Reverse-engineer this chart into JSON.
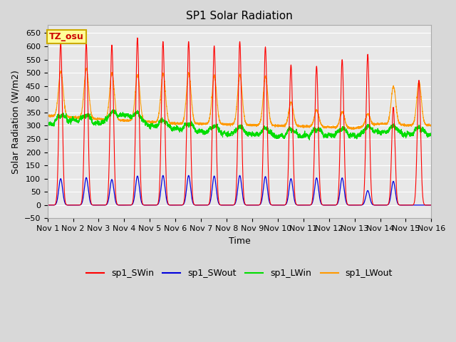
{
  "title": "SP1 Solar Radiation",
  "xlabel": "Time",
  "ylabel": "Solar Radiation (W/m2)",
  "xlim": [
    0,
    15
  ],
  "ylim": [
    -50,
    680
  ],
  "yticks": [
    -50,
    0,
    50,
    100,
    150,
    200,
    250,
    300,
    350,
    400,
    450,
    500,
    550,
    600,
    650
  ],
  "xtick_labels": [
    "Nov 1",
    "Nov 2",
    "Nov 3",
    "Nov 4",
    "Nov 5",
    "Nov 6",
    "Nov 7",
    "Nov 8",
    "Nov 9",
    "Nov 10",
    "Nov 11",
    "Nov 12",
    "Nov 13",
    "Nov 14",
    "Nov 15",
    "Nov 16"
  ],
  "colors": {
    "SWin": "#ff0000",
    "SWout": "#0000dd",
    "LWin": "#00dd00",
    "LWout": "#ff9900"
  },
  "fig_bg_color": "#d8d8d8",
  "plot_bg_color": "#e8e8e8",
  "grid_color": "#ffffff",
  "timezone_label": "TZ_osu",
  "timezone_box_facecolor": "#ffff99",
  "timezone_box_edgecolor": "#ccaa00",
  "timezone_text_color": "#cc0000",
  "legend_labels": [
    "sp1_SWin",
    "sp1_SWout",
    "sp1_LWin",
    "sp1_LWout"
  ],
  "title_fontsize": 11,
  "label_fontsize": 9,
  "tick_fontsize": 8,
  "legend_fontsize": 9,
  "sw_in_peaks": [
    615,
    612,
    605,
    632,
    618,
    618,
    602,
    618,
    598,
    530,
    525,
    550,
    570,
    370,
    472
  ],
  "sw_out_peaks": [
    100,
    104,
    97,
    110,
    112,
    112,
    110,
    112,
    108,
    100,
    103,
    103,
    55,
    90,
    0
  ],
  "lw_in_base": [
    305,
    322,
    308,
    342,
    300,
    288,
    278,
    270,
    268,
    260,
    262,
    265,
    262,
    278,
    268
  ],
  "lw_out_base": [
    338,
    332,
    325,
    320,
    315,
    308,
    308,
    305,
    302,
    300,
    298,
    295,
    290,
    308,
    302
  ],
  "lw_out_peaks": [
    510,
    520,
    502,
    495,
    500,
    498,
    490,
    495,
    488,
    390,
    360,
    355,
    335,
    452,
    465
  ]
}
